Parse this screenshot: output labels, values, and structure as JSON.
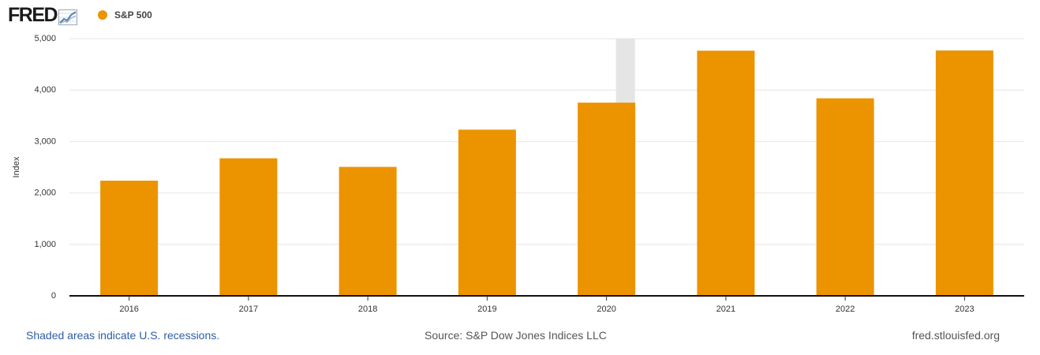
{
  "brand": {
    "logo_text": "FRED"
  },
  "legend": {
    "series_label": "S&P 500",
    "color": "#ec9300"
  },
  "chart_data": {
    "type": "bar",
    "title": "S&P 500",
    "xlabel": "",
    "ylabel": "Index",
    "categories": [
      "2016",
      "2017",
      "2018",
      "2019",
      "2020",
      "2021",
      "2022",
      "2023"
    ],
    "series": [
      {
        "name": "S&P 500",
        "values": [
          2239,
          2674,
          2507,
          3231,
          3756,
          4766,
          3840,
          4770
        ],
        "color": "#ec9300"
      }
    ],
    "ylim": [
      0,
      5000
    ],
    "yticks": [
      0,
      1000,
      2000,
      3000,
      4000,
      5000
    ],
    "ytick_labels": [
      "0",
      "1,000",
      "2,000",
      "3,000",
      "4,000",
      "5,000"
    ],
    "grid": true,
    "recessions": [
      {
        "category": "2020",
        "color": "#e5e5e5"
      }
    ]
  },
  "footer": {
    "note": "Shaded areas indicate U.S. recessions.",
    "source": "Source: S&P Dow Jones Indices LLC",
    "site": "fred.stlouisfed.org"
  }
}
